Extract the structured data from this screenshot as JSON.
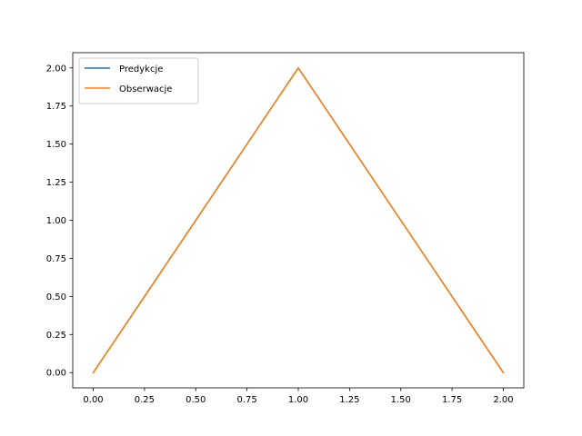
{
  "chart_data": {
    "type": "line",
    "title": "",
    "xlabel": "",
    "ylabel": "",
    "x": [
      0.0,
      1.0,
      2.0
    ],
    "series": [
      {
        "name": "Predykcje",
        "values": [
          0.0,
          2.0,
          0.0
        ],
        "color": "#1f77b4"
      },
      {
        "name": "Obserwacje",
        "values": [
          0.0,
          2.0,
          0.0
        ],
        "color": "#ff7f0e"
      }
    ],
    "xlim": [
      -0.1,
      2.1
    ],
    "ylim": [
      -0.1,
      2.1
    ],
    "xticks": [
      0.0,
      0.25,
      0.5,
      0.75,
      1.0,
      1.25,
      1.5,
      1.75,
      2.0
    ],
    "xtick_labels": [
      "0.00",
      "0.25",
      "0.50",
      "0.75",
      "1.00",
      "1.25",
      "1.50",
      "1.75",
      "2.00"
    ],
    "yticks": [
      0.0,
      0.25,
      0.5,
      0.75,
      1.0,
      1.25,
      1.5,
      1.75,
      2.0
    ],
    "ytick_labels": [
      "0.00",
      "0.25",
      "0.50",
      "0.75",
      "1.00",
      "1.25",
      "1.50",
      "1.75",
      "2.00"
    ],
    "grid": false,
    "legend_position": "top-left"
  }
}
